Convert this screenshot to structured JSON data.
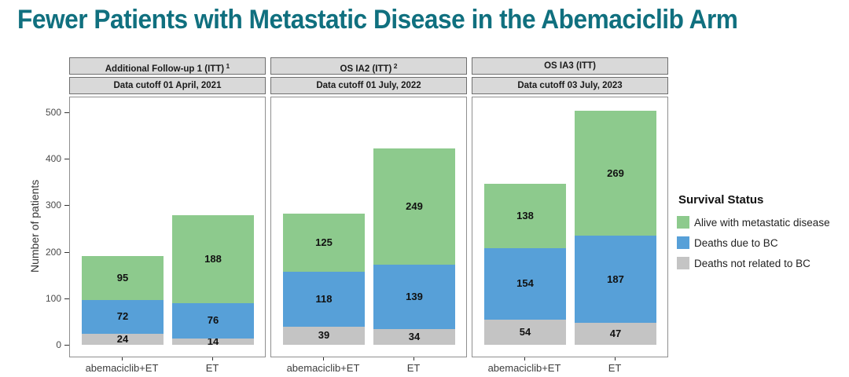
{
  "title": "Fewer Patients with Metastatic Disease in the Abemaciclib Arm",
  "colors": {
    "title_teal": "#10707f",
    "alive_green": "#8dca8d",
    "deaths_bc_blue": "#57a0d8",
    "deaths_other_gray": "#c4c4c4",
    "strip_background": "#d9d9d9",
    "panel_border": "#8f8f8f"
  },
  "legend": {
    "title": "Survival Status",
    "items": [
      {
        "label": "Alive with metastatic disease",
        "color": "#8dca8d"
      },
      {
        "label": "Deaths due to BC",
        "color": "#57a0d8"
      },
      {
        "label": "Deaths not related to BC",
        "color": "#c4c4c4"
      }
    ]
  },
  "chart_data": {
    "type": "bar",
    "stacked": true,
    "title": "Fewer Patients with Metastatic Disease in the Abemaciclib Arm",
    "ylabel": "Number of patients",
    "ylim": [
      0,
      520
    ],
    "yticks": [
      0,
      100,
      200,
      300,
      400,
      500
    ],
    "grid": false,
    "legend_position": "right",
    "categories": [
      "abemaciclib+ET",
      "ET"
    ],
    "stack_order_bottom_to_top": [
      "Deaths not related to BC",
      "Deaths due to BC",
      "Alive with metastatic disease"
    ],
    "series_colors": {
      "Deaths not related to BC": "#c4c4c4",
      "Deaths due to BC": "#57a0d8",
      "Alive with metastatic disease": "#8dca8d"
    },
    "panels": [
      {
        "strip_title": "Additional Follow-up 1 (ITT)",
        "strip_superscript": "1",
        "strip_subtitle": "Data cutoff 01 April, 2021",
        "bars": [
          {
            "category": "abemaciclib+ET",
            "values": {
              "Deaths not related to BC": 24,
              "Deaths due to BC": 72,
              "Alive with metastatic disease": 95
            }
          },
          {
            "category": "ET",
            "values": {
              "Deaths not related to BC": 14,
              "Deaths due to BC": 76,
              "Alive with metastatic disease": 188
            }
          }
        ]
      },
      {
        "strip_title": "OS IA2 (ITT)",
        "strip_superscript": "2",
        "strip_subtitle": "Data cutoff 01 July, 2022",
        "bars": [
          {
            "category": "abemaciclib+ET",
            "values": {
              "Deaths not related to BC": 39,
              "Deaths due to BC": 118,
              "Alive with metastatic disease": 125
            }
          },
          {
            "category": "ET",
            "values": {
              "Deaths not related to BC": 34,
              "Deaths due to BC": 139,
              "Alive with metastatic disease": 249
            }
          }
        ]
      },
      {
        "strip_title": "OS IA3 (ITT)",
        "strip_superscript": "",
        "strip_subtitle": "Data cutoff 03 July, 2023",
        "bars": [
          {
            "category": "abemaciclib+ET",
            "values": {
              "Deaths not related to BC": 54,
              "Deaths due to BC": 154,
              "Alive with metastatic disease": 138
            }
          },
          {
            "category": "ET",
            "values": {
              "Deaths not related to BC": 47,
              "Deaths due to BC": 187,
              "Alive with metastatic disease": 269
            }
          }
        ]
      }
    ]
  }
}
